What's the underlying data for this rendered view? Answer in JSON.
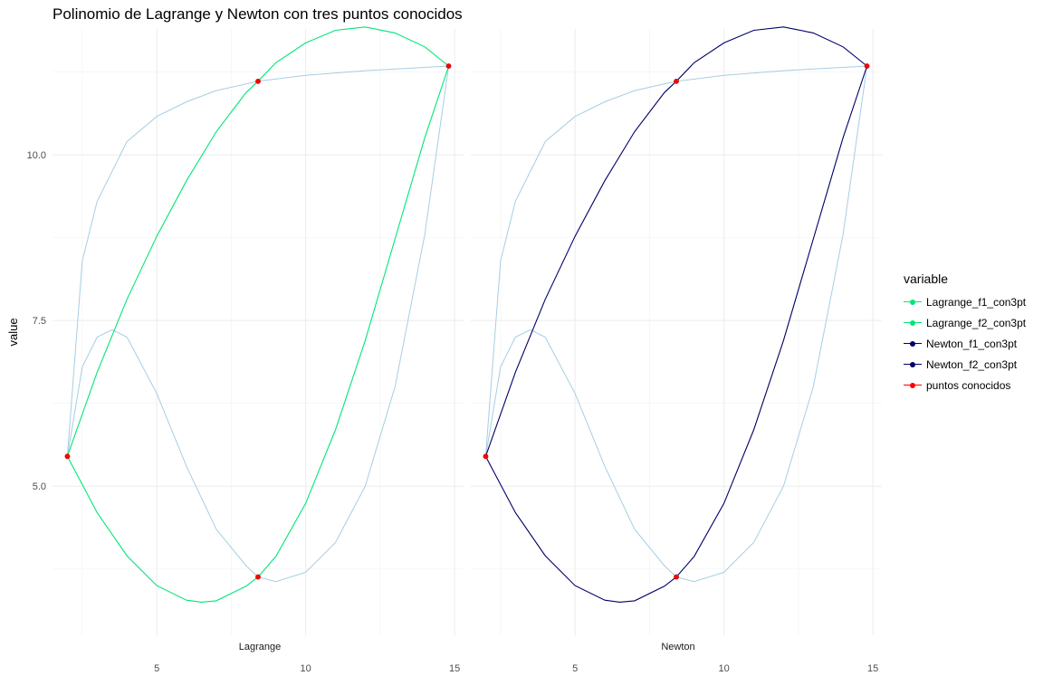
{
  "chart_data": {
    "type": "line",
    "title": "Polinomio de Lagrange y Newton con tres puntos conocidos",
    "xlabel": "",
    "ylabel": "value",
    "xlim": [
      1.5,
      15.3
    ],
    "ylim": [
      2.75,
      11.9
    ],
    "x_ticks": [
      5,
      10,
      15
    ],
    "y_ticks": [
      5.0,
      7.5,
      10.0
    ],
    "y_tick_labels": [
      "5.0",
      "7.5",
      "10.0"
    ],
    "grid": true,
    "legend_title": "variable",
    "legend_position": "right",
    "panels": [
      {
        "label": "Lagrange",
        "curves": [
          {
            "name": "Lagrange_f1_con3pt",
            "color": "#00e676",
            "points": [
              [
                2.0,
                5.45
              ],
              [
                3.0,
                6.72
              ],
              [
                4.0,
                7.82
              ],
              [
                5.0,
                8.77
              ],
              [
                6.0,
                9.61
              ],
              [
                7.0,
                10.35
              ],
              [
                8.0,
                10.94
              ],
              [
                8.4,
                11.11
              ],
              [
                9.0,
                11.39
              ],
              [
                10.0,
                11.69
              ],
              [
                11.0,
                11.88
              ],
              [
                12.0,
                11.93
              ],
              [
                13.0,
                11.84
              ],
              [
                14.0,
                11.63
              ],
              [
                14.8,
                11.34
              ]
            ]
          },
          {
            "name": "Lagrange_f2_con3pt",
            "color": "#00e676",
            "points": [
              [
                2.0,
                5.45
              ],
              [
                3.0,
                4.6
              ],
              [
                4.0,
                3.95
              ],
              [
                5.0,
                3.5
              ],
              [
                6.0,
                3.28
              ],
              [
                6.5,
                3.25
              ],
              [
                7.0,
                3.27
              ],
              [
                8.0,
                3.49
              ],
              [
                8.4,
                3.63
              ],
              [
                9.0,
                3.94
              ],
              [
                10.0,
                4.74
              ],
              [
                11.0,
                5.85
              ],
              [
                12.0,
                7.2
              ],
              [
                13.0,
                8.73
              ],
              [
                14.0,
                10.26
              ],
              [
                14.8,
                11.34
              ]
            ]
          },
          {
            "name": "Newton_f1_con3pt",
            "color": "#a6cee3",
            "points": [
              [
                2.0,
                5.45
              ],
              [
                2.5,
                8.4
              ],
              [
                3.0,
                9.3
              ],
              [
                4.0,
                10.2
              ],
              [
                5.0,
                10.58
              ],
              [
                6.0,
                10.8
              ],
              [
                7.0,
                10.97
              ],
              [
                8.4,
                11.11
              ],
              [
                10.0,
                11.2
              ],
              [
                12.0,
                11.27
              ],
              [
                14.8,
                11.34
              ]
            ]
          },
          {
            "name": "Newton_f2_con3pt",
            "color": "#a6cee3",
            "points": [
              [
                2.0,
                5.45
              ],
              [
                2.5,
                6.8
              ],
              [
                3.0,
                7.25
              ],
              [
                3.5,
                7.36
              ],
              [
                4.0,
                7.25
              ],
              [
                5.0,
                6.4
              ],
              [
                6.0,
                5.3
              ],
              [
                7.0,
                4.35
              ],
              [
                8.0,
                3.8
              ],
              [
                8.4,
                3.63
              ],
              [
                9.0,
                3.56
              ],
              [
                10.0,
                3.7
              ],
              [
                11.0,
                4.15
              ],
              [
                12.0,
                5.0
              ],
              [
                13.0,
                6.5
              ],
              [
                14.0,
                8.8
              ],
              [
                14.8,
                11.34
              ]
            ]
          }
        ],
        "points": [
          [
            2.0,
            5.45
          ],
          [
            8.4,
            3.63
          ],
          [
            8.4,
            11.11
          ],
          [
            14.8,
            11.34
          ]
        ]
      },
      {
        "label": "Newton",
        "curves": [
          {
            "name": "Newton_f1_con3pt",
            "color": "#000066",
            "points": [
              [
                2.0,
                5.45
              ],
              [
                3.0,
                6.72
              ],
              [
                4.0,
                7.82
              ],
              [
                5.0,
                8.77
              ],
              [
                6.0,
                9.61
              ],
              [
                7.0,
                10.35
              ],
              [
                8.0,
                10.94
              ],
              [
                8.4,
                11.11
              ],
              [
                9.0,
                11.39
              ],
              [
                10.0,
                11.69
              ],
              [
                11.0,
                11.88
              ],
              [
                12.0,
                11.93
              ],
              [
                13.0,
                11.84
              ],
              [
                14.0,
                11.63
              ],
              [
                14.8,
                11.34
              ]
            ]
          },
          {
            "name": "Newton_f2_con3pt",
            "color": "#000066",
            "points": [
              [
                2.0,
                5.45
              ],
              [
                3.0,
                4.6
              ],
              [
                4.0,
                3.95
              ],
              [
                5.0,
                3.5
              ],
              [
                6.0,
                3.28
              ],
              [
                6.5,
                3.25
              ],
              [
                7.0,
                3.27
              ],
              [
                8.0,
                3.49
              ],
              [
                8.4,
                3.63
              ],
              [
                9.0,
                3.94
              ],
              [
                10.0,
                4.74
              ],
              [
                11.0,
                5.85
              ],
              [
                12.0,
                7.2
              ],
              [
                13.0,
                8.73
              ],
              [
                14.0,
                10.26
              ],
              [
                14.8,
                11.34
              ]
            ]
          },
          {
            "name": "Lagrange_f1_con3pt",
            "color": "#a6cee3",
            "points": [
              [
                2.0,
                5.45
              ],
              [
                2.5,
                8.4
              ],
              [
                3.0,
                9.3
              ],
              [
                4.0,
                10.2
              ],
              [
                5.0,
                10.58
              ],
              [
                6.0,
                10.8
              ],
              [
                7.0,
                10.97
              ],
              [
                8.4,
                11.11
              ],
              [
                10.0,
                11.2
              ],
              [
                12.0,
                11.27
              ],
              [
                14.8,
                11.34
              ]
            ]
          },
          {
            "name": "Lagrange_f2_con3pt",
            "color": "#a6cee3",
            "points": [
              [
                2.0,
                5.45
              ],
              [
                2.5,
                6.8
              ],
              [
                3.0,
                7.25
              ],
              [
                3.5,
                7.36
              ],
              [
                4.0,
                7.25
              ],
              [
                5.0,
                6.4
              ],
              [
                6.0,
                5.3
              ],
              [
                7.0,
                4.35
              ],
              [
                8.0,
                3.8
              ],
              [
                8.4,
                3.63
              ],
              [
                9.0,
                3.56
              ],
              [
                10.0,
                3.7
              ],
              [
                11.0,
                4.15
              ],
              [
                12.0,
                5.0
              ],
              [
                13.0,
                6.5
              ],
              [
                14.0,
                8.8
              ],
              [
                14.8,
                11.34
              ]
            ]
          }
        ],
        "points": [
          [
            2.0,
            5.45
          ],
          [
            8.4,
            3.63
          ],
          [
            8.4,
            11.11
          ],
          [
            14.8,
            11.34
          ]
        ]
      }
    ],
    "legend": [
      {
        "name": "Lagrange_f1_con3pt",
        "color": "#00e676"
      },
      {
        "name": "Lagrange_f2_con3pt",
        "color": "#00e676"
      },
      {
        "name": "Newton_f1_con3pt",
        "color": "#000066"
      },
      {
        "name": "Newton_f2_con3pt",
        "color": "#000066"
      },
      {
        "name": "puntos conocidos",
        "color": "#ff0000"
      }
    ],
    "point_color": "#ff0000"
  }
}
